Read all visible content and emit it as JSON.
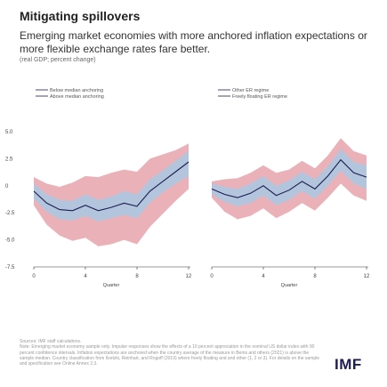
{
  "header": {
    "title": "Mitigating spillovers",
    "subtitle": "Emerging market economies with more anchored inflation expectations or more flexible exchange rates fare better.",
    "units": "(real GDP; percent change)"
  },
  "colors": {
    "line": "#1d1d4f",
    "red_band": "#e7a3ad",
    "blue_band": "#a9c9e3",
    "axis": "#333333",
    "logo": "#1d1d4f"
  },
  "footer": {
    "source": "Sources: IMF staff calculations.",
    "note": "Note: Emerging market economy sample only. Impulse responses show the effects of a 10 percent appreciation in the nominal US dollar index with 90 percent confidence intervals. Inflation expectations are anchored when the country average of the measure in Bems and others (2021) is above the sample median. Country classification from Ilzetzki, Reinhart, and Rogoff (2019) where freely floating and and other (1, 2 or 3). For details on the sample and specification see Online Annex 2.3.",
    "logo": "IMF"
  },
  "chart_data": [
    {
      "type": "line",
      "panel": "left",
      "xlabel": "Quarter",
      "x": [
        0,
        1,
        2,
        3,
        4,
        5,
        6,
        7,
        8,
        9,
        10,
        11,
        12
      ],
      "xticks": [
        0,
        4,
        8,
        12
      ],
      "ylim": [
        -7.5,
        5.0
      ],
      "yticks": [
        5.0,
        2.5,
        0,
        -2.5,
        -5.0,
        -7.5
      ],
      "ytick_labels": [
        "5.0",
        "2.5",
        "0",
        "-2.5",
        "-5.0",
        "-7.5"
      ],
      "legend": [
        "Below median anchoring",
        "Above median anchoring"
      ],
      "series": [
        {
          "name": "Below median anchoring",
          "values": [
            -0.5,
            -1.6,
            -2.2,
            -2.3,
            -1.8,
            -2.3,
            -2.0,
            -1.6,
            -1.9,
            -0.5,
            0.4,
            1.3,
            2.2
          ],
          "ci_lower": [
            -1.8,
            -3.6,
            -4.6,
            -5.1,
            -4.8,
            -5.6,
            -5.4,
            -5.0,
            -5.4,
            -3.8,
            -2.6,
            -1.4,
            -0.3
          ],
          "ci_upper": [
            0.8,
            0.2,
            -0.1,
            0.3,
            0.9,
            0.8,
            1.2,
            1.5,
            1.3,
            2.5,
            2.9,
            3.3,
            3.9
          ]
        },
        {
          "name": "Above median anchoring",
          "values": [
            -0.5,
            -1.6,
            -2.2,
            -2.3,
            -1.8,
            -2.3,
            -2.0,
            -1.6,
            -1.9,
            -0.5,
            0.4,
            1.3,
            2.2
          ],
          "ci_lower": [
            -1.2,
            -2.4,
            -3.1,
            -3.2,
            -2.8,
            -3.3,
            -3.0,
            -2.7,
            -3.0,
            -1.6,
            -0.6,
            0.2,
            0.9
          ],
          "ci_upper": [
            0.2,
            -0.8,
            -1.3,
            -1.4,
            -0.8,
            -1.3,
            -1.0,
            -0.5,
            -0.8,
            0.6,
            1.4,
            2.3,
            3.2
          ]
        }
      ]
    },
    {
      "type": "line",
      "panel": "right",
      "xlabel": "Quarter",
      "x": [
        0,
        1,
        2,
        3,
        4,
        5,
        6,
        7,
        8,
        9,
        10,
        11,
        12
      ],
      "xticks": [
        0,
        4,
        8,
        12
      ],
      "ylim": [
        -7.5,
        5.0
      ],
      "legend": [
        "Other ER regime",
        "Freely floating ER regime"
      ],
      "series": [
        {
          "name": "Other ER regime",
          "values": [
            -0.3,
            -0.8,
            -1.1,
            -0.7,
            0.0,
            -0.9,
            -0.4,
            0.4,
            -0.3,
            0.9,
            2.4,
            1.2,
            0.8
          ],
          "ci_lower": [
            -1.1,
            -2.4,
            -3.1,
            -2.8,
            -2.1,
            -3.0,
            -2.4,
            -1.6,
            -2.3,
            -1.1,
            0.2,
            -0.9,
            -1.4
          ],
          "ci_upper": [
            0.4,
            0.6,
            0.7,
            1.2,
            1.9,
            1.2,
            1.5,
            2.3,
            1.6,
            2.8,
            4.4,
            3.2,
            2.8
          ]
        },
        {
          "name": "Freely floating ER regime",
          "values": [
            -0.3,
            -0.8,
            -1.1,
            -0.7,
            0.0,
            -0.9,
            -0.4,
            0.4,
            -0.3,
            0.9,
            2.4,
            1.2,
            0.8
          ],
          "ci_lower": [
            -0.8,
            -1.5,
            -1.9,
            -1.6,
            -0.9,
            -1.8,
            -1.3,
            -0.5,
            -1.2,
            0.0,
            1.4,
            0.2,
            -0.3
          ],
          "ci_upper": [
            0.2,
            -0.1,
            -0.3,
            0.2,
            0.9,
            0.0,
            0.5,
            1.3,
            0.6,
            1.8,
            3.4,
            2.2,
            1.9
          ]
        }
      ]
    }
  ]
}
